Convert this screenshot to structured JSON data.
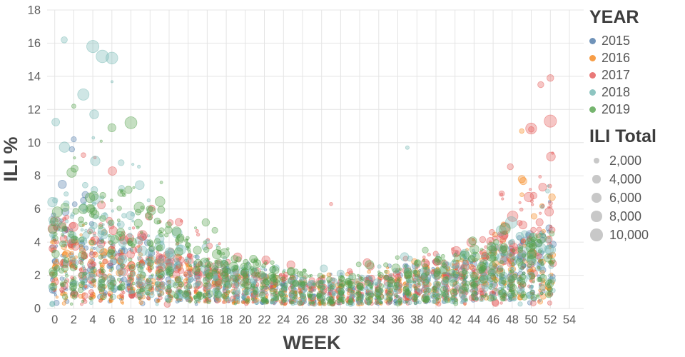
{
  "chart_data": {
    "type": "scatter",
    "title": "",
    "xlabel": "WEEK",
    "ylabel": "ILI %",
    "xlim": [
      -0.8,
      55.5
    ],
    "ylim": [
      0,
      18
    ],
    "xticks": [
      0,
      2,
      4,
      6,
      8,
      10,
      12,
      14,
      16,
      18,
      20,
      22,
      24,
      26,
      28,
      30,
      32,
      34,
      36,
      38,
      40,
      42,
      44,
      46,
      48,
      50,
      52,
      54
    ],
    "yticks": [
      0,
      2,
      4,
      6,
      8,
      10,
      12,
      14,
      16,
      18
    ],
    "grid": true,
    "grid_color": "#e4e4e4",
    "axis_title_color": "#454545",
    "tick_label_color": "#5a5a5a",
    "weeks_range": [
      0,
      52
    ],
    "points_per_group": 12,
    "size_scale": 0.088,
    "point_fill_opacity": 0.34,
    "legend": {
      "year_title": "YEAR",
      "size_title": "ILI Total",
      "size_swatch_color": "#9b9b9b",
      "sizes": [
        {
          "label": "2,000",
          "value": 2000
        },
        {
          "label": "4,000",
          "value": 4000
        },
        {
          "label": "6,000",
          "value": 6000
        },
        {
          "label": "8,000",
          "value": 8000
        },
        {
          "label": "10,000",
          "value": 10000
        }
      ]
    },
    "series": [
      {
        "name": "2015",
        "color": "#4c78a8",
        "size_boost": 0.55,
        "weekly_median": [
          [
            0,
            2.9
          ],
          [
            8,
            2.1
          ],
          [
            14,
            1.6
          ],
          [
            26,
            1.0
          ],
          [
            30,
            0.9
          ],
          [
            35,
            1.1
          ],
          [
            44,
            1.8
          ],
          [
            52,
            2.9
          ]
        ],
        "weekly_max": [
          [
            0,
            6.8
          ],
          [
            2,
            10.3
          ],
          [
            4,
            6.6
          ],
          [
            8,
            4.6
          ],
          [
            14,
            3.4
          ],
          [
            26,
            2.2
          ],
          [
            30,
            2.1
          ],
          [
            36,
            2.7
          ],
          [
            44,
            4.2
          ],
          [
            48,
            5.4
          ],
          [
            52,
            7.2
          ]
        ]
      },
      {
        "name": "2016",
        "color": "#f58518",
        "size_boost": 0.5,
        "weekly_median": [
          [
            0,
            2.4
          ],
          [
            8,
            2.0
          ],
          [
            14,
            1.6
          ],
          [
            27,
            0.9
          ],
          [
            31,
            0.9
          ],
          [
            35,
            1.1
          ],
          [
            44,
            1.8
          ],
          [
            52,
            2.8
          ]
        ],
        "weekly_max": [
          [
            0,
            5.6
          ],
          [
            8,
            4.4
          ],
          [
            14,
            3.3
          ],
          [
            27,
            2.2
          ],
          [
            30,
            2.1
          ],
          [
            36,
            2.8
          ],
          [
            44,
            4.4
          ],
          [
            48,
            5.6
          ],
          [
            49,
            10.8
          ],
          [
            50,
            6.4
          ],
          [
            52,
            7.0
          ]
        ]
      },
      {
        "name": "2017",
        "color": "#e45756",
        "size_boost": 0.95,
        "weekly_median": [
          [
            0,
            3.2
          ],
          [
            6,
            2.9
          ],
          [
            14,
            1.9
          ],
          [
            27,
            1.0
          ],
          [
            30,
            1.0
          ],
          [
            36,
            1.3
          ],
          [
            44,
            2.2
          ],
          [
            48,
            3.2
          ],
          [
            50,
            4.2
          ],
          [
            52,
            5.4
          ]
        ],
        "weekly_max": [
          [
            0,
            8.8
          ],
          [
            5,
            9.6
          ],
          [
            10,
            7.2
          ],
          [
            14,
            5.0
          ],
          [
            20,
            3.2
          ],
          [
            27,
            2.4
          ],
          [
            30,
            2.5
          ],
          [
            36,
            3.2
          ],
          [
            44,
            5.5
          ],
          [
            47,
            7.3
          ],
          [
            48,
            8.6
          ],
          [
            49,
            10.8
          ],
          [
            50,
            11.6
          ],
          [
            51,
            13.6
          ],
          [
            52,
            13.9
          ]
        ]
      },
      {
        "name": "2018",
        "color": "#72b7b2",
        "size_boost": 1.05,
        "weekly_median": [
          [
            0,
            3.8
          ],
          [
            3,
            4.6
          ],
          [
            7,
            3.8
          ],
          [
            10,
            2.7
          ],
          [
            14,
            1.9
          ],
          [
            26,
            1.0
          ],
          [
            31,
            1.0
          ],
          [
            36,
            1.3
          ],
          [
            44,
            2.0
          ],
          [
            52,
            2.8
          ]
        ],
        "weekly_max": [
          [
            0,
            13.2
          ],
          [
            1,
            16.3
          ],
          [
            2,
            13.0
          ],
          [
            3,
            15.6
          ],
          [
            4,
            15.9
          ],
          [
            6,
            15.2
          ],
          [
            7,
            11.2
          ],
          [
            8,
            9.6
          ],
          [
            10,
            7.6
          ],
          [
            14,
            4.7
          ],
          [
            20,
            3.1
          ],
          [
            26,
            2.5
          ],
          [
            30,
            2.4
          ],
          [
            36,
            3.0
          ],
          [
            44,
            4.6
          ],
          [
            48,
            5.4
          ],
          [
            52,
            7.6
          ]
        ]
      },
      {
        "name": "2019",
        "color": "#54a24b",
        "size_boost": 1.0,
        "weekly_median": [
          [
            0,
            3.4
          ],
          [
            8,
            4.4
          ],
          [
            12,
            3.1
          ],
          [
            14,
            2.5
          ],
          [
            26,
            1.2
          ],
          [
            30,
            1.1
          ],
          [
            36,
            1.4
          ],
          [
            44,
            2.1
          ],
          [
            52,
            2.6
          ]
        ],
        "weekly_max": [
          [
            0,
            9.2
          ],
          [
            2,
            12.3
          ],
          [
            5,
            11.0
          ],
          [
            8,
            11.3
          ],
          [
            11,
            9.9
          ],
          [
            14,
            6.3
          ],
          [
            20,
            3.6
          ],
          [
            26,
            2.7
          ],
          [
            30,
            2.5
          ],
          [
            36,
            3.1
          ],
          [
            44,
            4.6
          ],
          [
            48,
            5.4
          ],
          [
            52,
            6.8
          ]
        ]
      }
    ],
    "outlier_points": [
      {
        "year": "2018",
        "week": 1,
        "ili": 16.2,
        "total": 2500
      },
      {
        "year": "2018",
        "week": 4,
        "ili": 15.8,
        "total": 9500
      },
      {
        "year": "2018",
        "week": 5,
        "ili": 15.2,
        "total": 10000
      },
      {
        "year": "2018",
        "week": 6,
        "ili": 15.1,
        "total": 9000
      },
      {
        "year": "2018",
        "week": 3,
        "ili": 12.9,
        "total": 8200
      },
      {
        "year": "2019",
        "week": 2,
        "ili": 12.2,
        "total": 1200
      },
      {
        "year": "2019",
        "week": 8,
        "ili": 11.2,
        "total": 9200
      },
      {
        "year": "2019",
        "week": 6,
        "ili": 10.9,
        "total": 4200
      },
      {
        "year": "2017",
        "week": 52,
        "ili": 13.9,
        "total": 3000
      },
      {
        "year": "2017",
        "week": 51,
        "ili": 13.5,
        "total": 2400
      },
      {
        "year": "2017",
        "week": 52,
        "ili": 11.3,
        "total": 9500
      },
      {
        "year": "2017",
        "week": 50,
        "ili": 10.8,
        "total": 2000
      },
      {
        "year": "2016",
        "week": 49,
        "ili": 10.7,
        "total": 1400
      },
      {
        "year": "2018",
        "week": 37,
        "ili": 9.7,
        "total": 900
      },
      {
        "year": "2015",
        "week": 2,
        "ili": 10.2,
        "total": 1800
      },
      {
        "year": "2017",
        "week": 29,
        "ili": 6.3,
        "total": 700
      }
    ]
  }
}
